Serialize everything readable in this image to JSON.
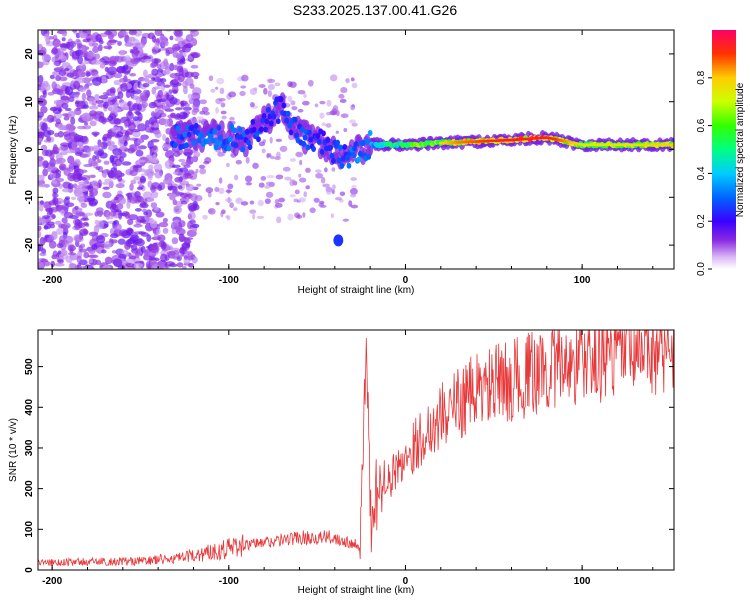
{
  "title": "S233.2025.137.00.41.G26",
  "colors": {
    "snr_line": "#e8383a",
    "axis": "#000000",
    "background": "#ffffff"
  },
  "chart_data": [
    {
      "type": "heatmap",
      "xlabel": "Height of straight line (km)",
      "ylabel": "Frequency (Hz)",
      "xlim": [
        -208,
        152
      ],
      "ylim": [
        -25,
        25
      ],
      "x_ticks": [
        -200,
        -100,
        0,
        100
      ],
      "y_ticks": [
        -20,
        -10,
        0,
        10,
        20
      ],
      "colorbar": {
        "label": "Normalized spectral amplitude",
        "range": [
          0.0,
          1.0
        ],
        "ticks": [
          "0.0",
          "0.2",
          "0.4",
          "0.6",
          "0.8"
        ],
        "colormap": "rainbow (violet→blue→cyan→green→yellow→orange→red→magenta)"
      },
      "ridge": {
        "description_points": [
          {
            "x": -130,
            "y": 3,
            "amp": 0.3
          },
          {
            "x": -110,
            "y": 3,
            "amp": 0.35
          },
          {
            "x": -90,
            "y": 2,
            "amp": 0.3
          },
          {
            "x": -70,
            "y": 9,
            "amp": 0.25
          },
          {
            "x": -60,
            "y": 3,
            "amp": 0.3
          },
          {
            "x": -45,
            "y": 1,
            "amp": 0.25
          },
          {
            "x": -35,
            "y": -2,
            "amp": 0.3
          },
          {
            "x": -20,
            "y": 1,
            "amp": 0.4
          },
          {
            "x": 0,
            "y": 1,
            "amp": 0.6
          },
          {
            "x": 30,
            "y": 1.5,
            "amp": 0.8
          },
          {
            "x": 60,
            "y": 2,
            "amp": 0.9
          },
          {
            "x": 80,
            "y": 2.5,
            "amp": 0.9
          },
          {
            "x": 100,
            "y": 1,
            "amp": 0.7
          },
          {
            "x": 125,
            "y": 1,
            "amp": 0.7
          },
          {
            "x": 150,
            "y": 1,
            "amp": 0.75
          }
        ],
        "isolated_blob": {
          "x": -38,
          "y": -19,
          "amp": 0.25
        }
      }
    },
    {
      "type": "line",
      "xlabel": "Height of straight line (km)",
      "ylabel": "SNR (10 * v/v)",
      "xlim": [
        -208,
        152
      ],
      "ylim": [
        0,
        590
      ],
      "x_ticks": [
        -200,
        -100,
        0,
        100
      ],
      "y_ticks": [
        0,
        100,
        200,
        300,
        400,
        500
      ],
      "series": [
        {
          "trend_points": [
            {
              "x": -208,
              "y": 18
            },
            {
              "x": -150,
              "y": 22
            },
            {
              "x": -125,
              "y": 30
            },
            {
              "x": -100,
              "y": 55
            },
            {
              "x": -60,
              "y": 80
            },
            {
              "x": -40,
              "y": 80
            },
            {
              "x": -25,
              "y": 60
            },
            {
              "x": -22,
              "y": 545
            },
            {
              "x": -20,
              "y": 80
            },
            {
              "x": -15,
              "y": 180
            },
            {
              "x": 0,
              "y": 280
            },
            {
              "x": 20,
              "y": 380
            },
            {
              "x": 40,
              "y": 440
            },
            {
              "x": 70,
              "y": 480
            },
            {
              "x": 100,
              "y": 520
            },
            {
              "x": 130,
              "y": 540
            },
            {
              "x": 152,
              "y": 550
            }
          ]
        }
      ]
    }
  ]
}
